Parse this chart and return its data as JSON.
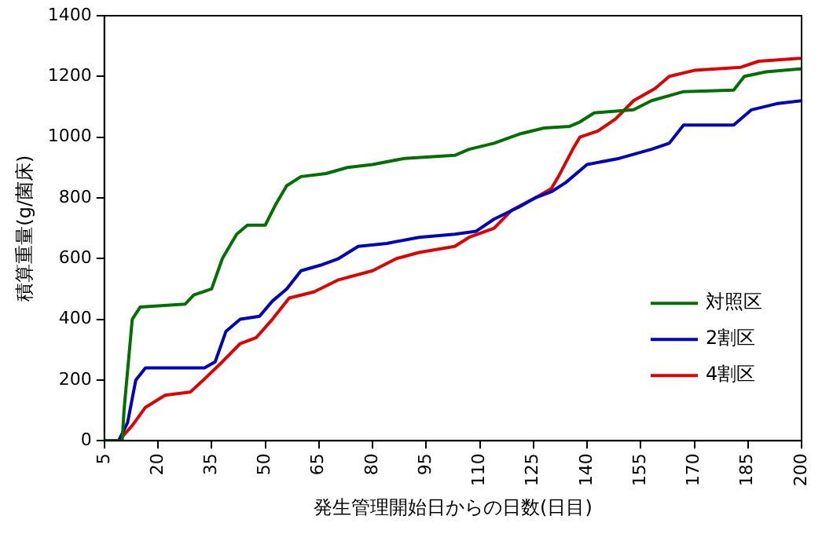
{
  "chart_data": {
    "type": "line",
    "xlabel": "発生管理開始日からの日数(日目)",
    "ylabel": "積算重量(g/菌床)",
    "xlim": [
      5,
      200
    ],
    "xticks": [
      5,
      20,
      35,
      50,
      65,
      80,
      95,
      110,
      125,
      140,
      155,
      170,
      185,
      200
    ],
    "ylim": [
      0,
      1400
    ],
    "yticks": [
      0,
      200,
      400,
      600,
      800,
      1000,
      1200,
      1400
    ],
    "grid": false,
    "legend": "bottom right",
    "marker": "none",
    "line_style": "solid",
    "series": [
      {
        "name": "対照区",
        "color": "#007000",
        "x": [
          5,
          10,
          10.5,
          12.8,
          15,
          27.6,
          30,
          35,
          38,
          42,
          45,
          50,
          53,
          56,
          60,
          67,
          73,
          80,
          89,
          103,
          107,
          114,
          121,
          128,
          135,
          138,
          142,
          153,
          158,
          167,
          181,
          184,
          190,
          200
        ],
        "values": [
          0,
          0,
          100,
          400,
          440,
          450,
          480,
          500,
          600,
          680,
          710,
          710,
          780,
          840,
          870,
          880,
          900,
          910,
          930,
          940,
          960,
          980,
          1010,
          1030,
          1035,
          1050,
          1080,
          1090,
          1120,
          1150,
          1155,
          1200,
          1215,
          1225
        ]
      },
      {
        "name": "2割区",
        "color": "#0000c0",
        "x": [
          5,
          9,
          11.5,
          13.8,
          16.5,
          33,
          36,
          39,
          43,
          48.4,
          52,
          56,
          60,
          66,
          70.5,
          76,
          84,
          93,
          103,
          109,
          114,
          121,
          125.5,
          130,
          134,
          140,
          149,
          158,
          163,
          167,
          181,
          186,
          193,
          200
        ],
        "values": [
          0,
          0,
          60,
          200,
          240,
          240,
          260,
          360,
          400,
          410,
          460,
          500,
          560,
          580,
          600,
          640,
          650,
          670,
          680,
          690,
          730,
          770,
          800,
          820,
          850,
          910,
          930,
          960,
          980,
          1040,
          1040,
          1090,
          1110,
          1120
        ]
      },
      {
        "name": "4割区",
        "color": "#e00000",
        "x": [
          5,
          9,
          12.8,
          16.5,
          22,
          29,
          32.7,
          38,
          43,
          47.5,
          52,
          56.7,
          63.6,
          70.5,
          80,
          86.7,
          93,
          103,
          107,
          114,
          119,
          125.5,
          130,
          132,
          136,
          138,
          143,
          148,
          153,
          159,
          163,
          170,
          183,
          188,
          200
        ],
        "values": [
          0,
          0,
          50,
          110,
          150,
          160,
          200,
          260,
          320,
          340,
          400,
          470,
          490,
          530,
          560,
          600,
          620,
          640,
          670,
          700,
          760,
          800,
          830,
          870,
          960,
          1000,
          1020,
          1060,
          1120,
          1160,
          1200,
          1220,
          1230,
          1250,
          1260
        ]
      }
    ]
  }
}
